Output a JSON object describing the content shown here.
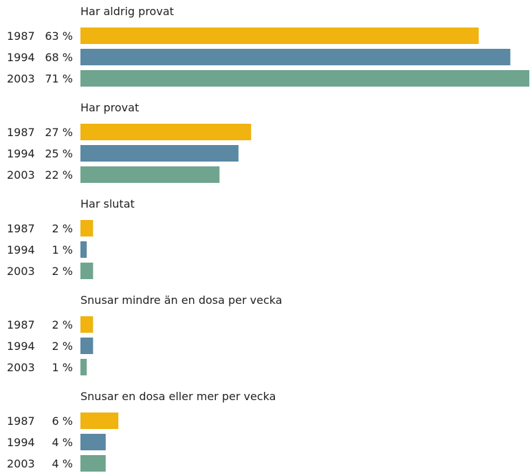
{
  "chart_data": {
    "type": "bar",
    "orientation": "horizontal",
    "legend": "none",
    "grid": false,
    "xlim": [
      0,
      71
    ],
    "colors": {
      "1987": "#f0b30f",
      "1994": "#5b88a3",
      "2003": "#6fa48f"
    },
    "groups": [
      {
        "title": "Har aldrig provat",
        "bars": [
          {
            "year": "1987",
            "value": 63,
            "label": "63 %"
          },
          {
            "year": "1994",
            "value": 68,
            "label": "68 %"
          },
          {
            "year": "2003",
            "value": 71,
            "label": "71 %"
          }
        ]
      },
      {
        "title": "Har provat",
        "bars": [
          {
            "year": "1987",
            "value": 27,
            "label": "27 %"
          },
          {
            "year": "1994",
            "value": 25,
            "label": "25 %"
          },
          {
            "year": "2003",
            "value": 22,
            "label": "22 %"
          }
        ]
      },
      {
        "title": "Har slutat",
        "bars": [
          {
            "year": "1987",
            "value": 2,
            "label": "2 %"
          },
          {
            "year": "1994",
            "value": 1,
            "label": "1 %"
          },
          {
            "year": "2003",
            "value": 2,
            "label": "2 %"
          }
        ]
      },
      {
        "title": "Snusar mindre än en dosa per vecka",
        "bars": [
          {
            "year": "1987",
            "value": 2,
            "label": "2 %"
          },
          {
            "year": "1994",
            "value": 2,
            "label": "2 %"
          },
          {
            "year": "2003",
            "value": 1,
            "label": "1 %"
          }
        ]
      },
      {
        "title": "Snusar en dosa eller mer per vecka",
        "bars": [
          {
            "year": "1987",
            "value": 6,
            "label": "6 %"
          },
          {
            "year": "1994",
            "value": 4,
            "label": "4 %"
          },
          {
            "year": "2003",
            "value": 4,
            "label": "4 %"
          }
        ]
      }
    ]
  }
}
